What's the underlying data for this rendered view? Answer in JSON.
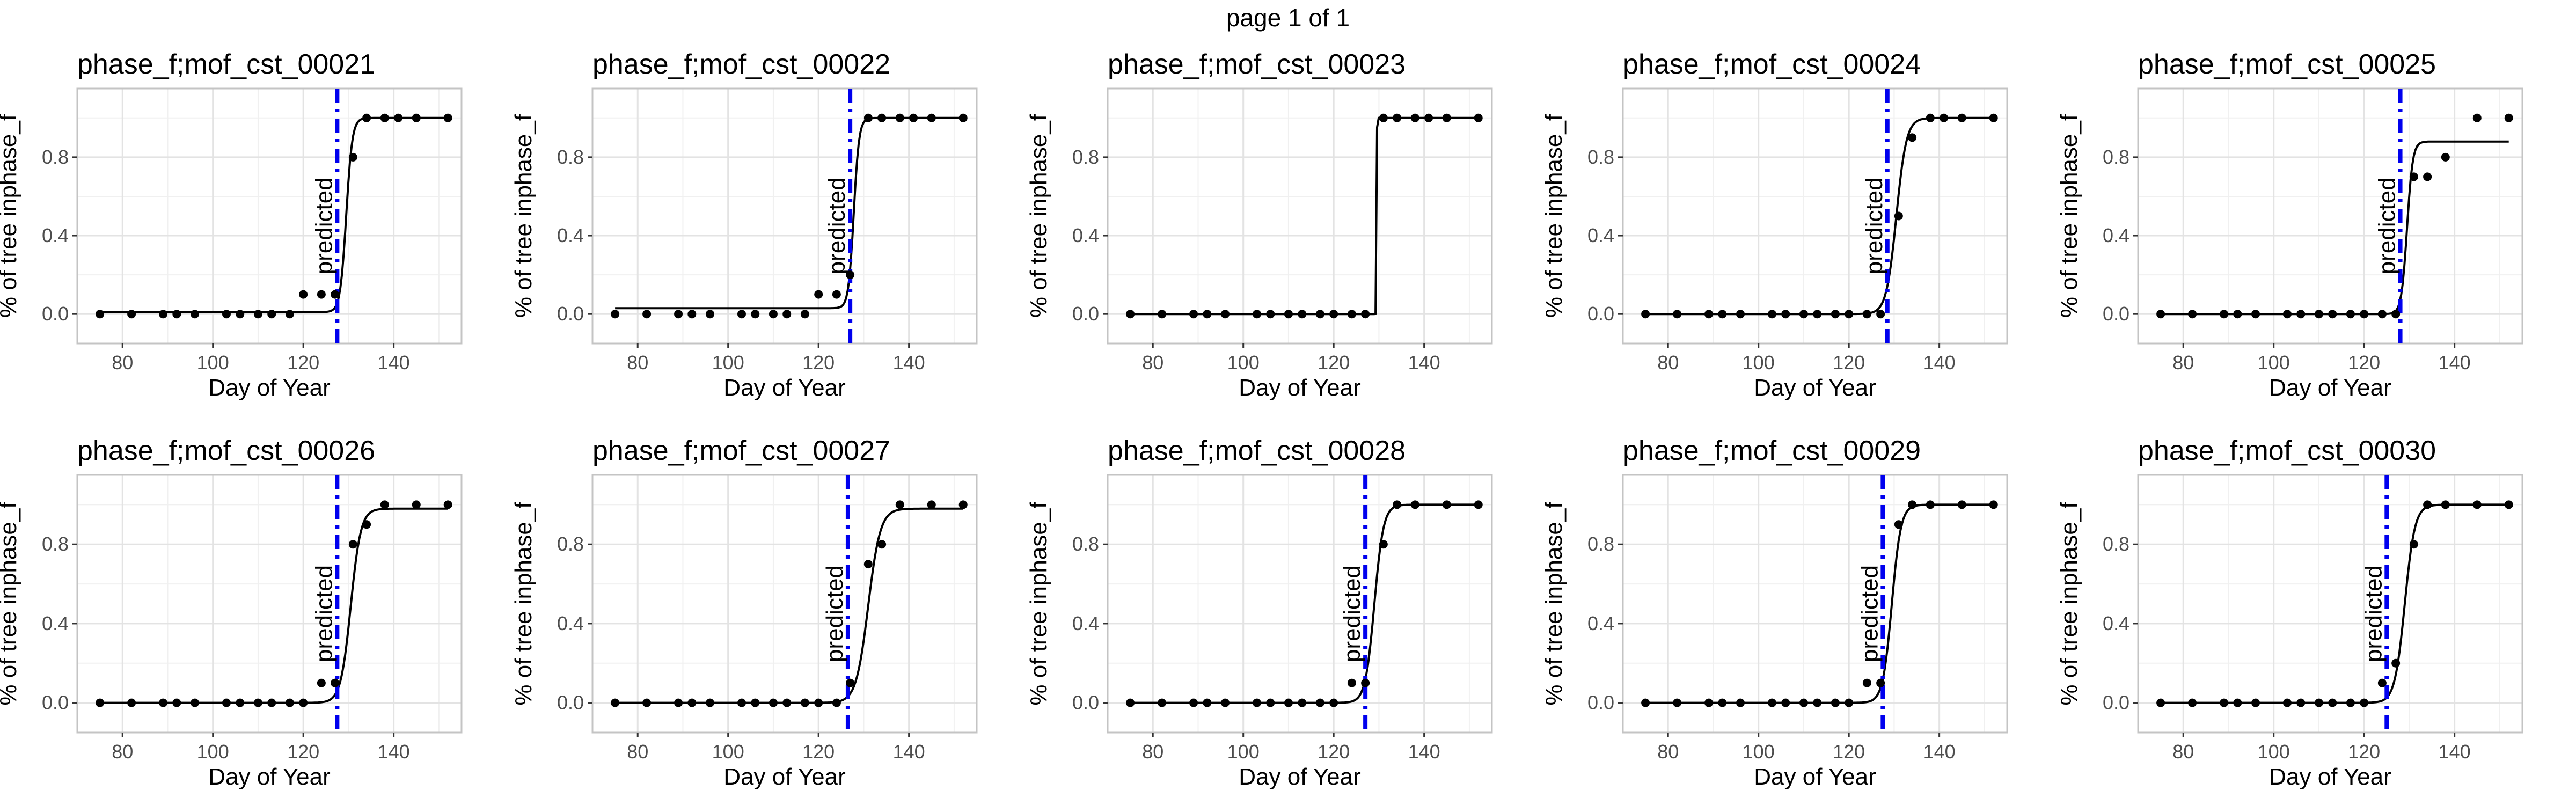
{
  "page_title": "page 1 of 1",
  "chart_data": [
    {
      "type": "scatter",
      "title": "phase_f;mof_cst_00021",
      "xlabel": "Day of Year",
      "ylabel": "% of tree inphase_f",
      "xlim": [
        70,
        155
      ],
      "ylim": [
        -0.15,
        1.15
      ],
      "xticks": [
        80,
        100,
        120,
        140
      ],
      "yticks": [
        0.0,
        0.4,
        0.8
      ],
      "points": {
        "x": [
          75,
          82,
          89,
          92,
          96,
          103,
          106,
          110,
          113,
          117,
          120,
          124,
          127,
          131,
          134,
          138,
          141,
          145,
          152
        ],
        "y": [
          0,
          0,
          0,
          0,
          0,
          0,
          0,
          0,
          0,
          0,
          0.1,
          0.1,
          0.1,
          0.8,
          1,
          1,
          1,
          1,
          1
        ]
      },
      "curve": {
        "L": 1.0,
        "x0": 129.5,
        "k": 1.5,
        "base": 0.01
      },
      "predicted_line": {
        "x": 127.5,
        "label": "predicted"
      },
      "grid": true
    },
    {
      "type": "scatter",
      "title": "phase_f;mof_cst_00022",
      "xlabel": "Day of Year",
      "ylabel": "% of tree inphase_f",
      "xlim": [
        70,
        155
      ],
      "ylim": [
        -0.15,
        1.15
      ],
      "xticks": [
        80,
        100,
        120,
        140
      ],
      "yticks": [
        0.0,
        0.4,
        0.8
      ],
      "points": {
        "x": [
          75,
          82,
          89,
          92,
          96,
          103,
          106,
          110,
          113,
          117,
          120,
          124,
          127,
          131,
          134,
          138,
          141,
          145,
          152
        ],
        "y": [
          0,
          0,
          0,
          0,
          0,
          0,
          0,
          0,
          0,
          0,
          0.1,
          0.1,
          0.2,
          1,
          1,
          1,
          1,
          1,
          1
        ]
      },
      "curve": {
        "L": 1.0,
        "x0": 127.8,
        "k": 1.7,
        "base": 0.03
      },
      "predicted_line": {
        "x": 127,
        "label": "predicted"
      },
      "grid": true
    },
    {
      "type": "scatter",
      "title": "phase_f;mof_cst_00023",
      "xlabel": "Day of Year",
      "ylabel": "% of tree inphase_f",
      "xlim": [
        70,
        155
      ],
      "ylim": [
        -0.15,
        1.15
      ],
      "xticks": [
        80,
        100,
        120,
        140
      ],
      "yticks": [
        0.0,
        0.4,
        0.8
      ],
      "points": {
        "x": [
          75,
          82,
          89,
          92,
          96,
          103,
          106,
          110,
          113,
          117,
          120,
          124,
          127,
          131,
          134,
          138,
          141,
          145,
          152
        ],
        "y": [
          0,
          0,
          0,
          0,
          0,
          0,
          0,
          0,
          0,
          0,
          0,
          0,
          0,
          1,
          1,
          1,
          1,
          1,
          1
        ]
      },
      "curve": {
        "L": 1.0,
        "x0": 129.5,
        "k": 30,
        "base": 0
      },
      "predicted_line": null,
      "grid": true
    },
    {
      "type": "scatter",
      "title": "phase_f;mof_cst_00024",
      "xlabel": "Day of Year",
      "ylabel": "% of tree inphase_f",
      "xlim": [
        70,
        155
      ],
      "ylim": [
        -0.15,
        1.15
      ],
      "xticks": [
        80,
        100,
        120,
        140
      ],
      "yticks": [
        0.0,
        0.4,
        0.8
      ],
      "points": {
        "x": [
          75,
          82,
          89,
          92,
          96,
          103,
          106,
          110,
          113,
          117,
          120,
          124,
          127,
          131,
          134,
          138,
          141,
          145,
          152
        ],
        "y": [
          0,
          0,
          0,
          0,
          0,
          0,
          0,
          0,
          0,
          0,
          0,
          0,
          0,
          0.5,
          0.9,
          1,
          1,
          1,
          1
        ]
      },
      "curve": {
        "L": 1.0,
        "x0": 130.5,
        "k": 0.9,
        "base": 0
      },
      "predicted_line": {
        "x": 128.5,
        "label": "predicted"
      },
      "grid": true
    },
    {
      "type": "scatter",
      "title": "phase_f;mof_cst_00025",
      "xlabel": "Day of Year",
      "ylabel": "% of tree inphase_f",
      "xlim": [
        70,
        155
      ],
      "ylim": [
        -0.15,
        1.15
      ],
      "xticks": [
        80,
        100,
        120,
        140
      ],
      "yticks": [
        0.0,
        0.4,
        0.8
      ],
      "points": {
        "x": [
          75,
          82,
          89,
          92,
          96,
          103,
          106,
          110,
          113,
          117,
          120,
          124,
          127,
          131,
          134,
          138,
          145,
          152
        ],
        "y": [
          0,
          0,
          0,
          0,
          0,
          0,
          0,
          0,
          0,
          0,
          0,
          0,
          0,
          0.7,
          0.7,
          0.8,
          1,
          1
        ]
      },
      "curve": {
        "L": 0.88,
        "x0": 129.5,
        "k": 1.6,
        "base": 0
      },
      "predicted_line": {
        "x": 128,
        "label": "predicted"
      },
      "grid": true
    },
    {
      "type": "scatter",
      "title": "phase_f;mof_cst_00026",
      "xlabel": "Day of Year",
      "ylabel": "% of tree inphase_f",
      "xlim": [
        70,
        155
      ],
      "ylim": [
        -0.15,
        1.15
      ],
      "xticks": [
        80,
        100,
        120,
        140
      ],
      "yticks": [
        0.0,
        0.4,
        0.8
      ],
      "points": {
        "x": [
          75,
          82,
          89,
          92,
          96,
          103,
          106,
          110,
          113,
          117,
          120,
          124,
          127,
          131,
          134,
          138,
          145,
          152
        ],
        "y": [
          0,
          0,
          0,
          0,
          0,
          0,
          0,
          0,
          0,
          0,
          0,
          0.1,
          0.1,
          0.8,
          0.9,
          1,
          1,
          1
        ]
      },
      "curve": {
        "L": 0.98,
        "x0": 130.5,
        "k": 0.9,
        "base": 0
      },
      "predicted_line": {
        "x": 127.5,
        "label": "predicted"
      },
      "grid": true
    },
    {
      "type": "scatter",
      "title": "phase_f;mof_cst_00027",
      "xlabel": "Day of Year",
      "ylabel": "% of tree inphase_f",
      "xlim": [
        70,
        155
      ],
      "ylim": [
        -0.15,
        1.15
      ],
      "xticks": [
        80,
        100,
        120,
        140
      ],
      "yticks": [
        0.0,
        0.4,
        0.8
      ],
      "points": {
        "x": [
          75,
          82,
          89,
          92,
          96,
          103,
          106,
          110,
          113,
          117,
          120,
          124,
          127,
          131,
          134,
          138,
          145,
          152
        ],
        "y": [
          0,
          0,
          0,
          0,
          0,
          0,
          0,
          0,
          0,
          0,
          0,
          0,
          0.1,
          0.7,
          0.8,
          1,
          1,
          1
        ]
      },
      "curve": {
        "L": 0.98,
        "x0": 131,
        "k": 0.75,
        "base": 0
      },
      "predicted_line": {
        "x": 126.5,
        "label": "predicted"
      },
      "grid": true
    },
    {
      "type": "scatter",
      "title": "phase_f;mof_cst_00028",
      "xlabel": "Day of Year",
      "ylabel": "% of tree inphase_f",
      "xlim": [
        70,
        155
      ],
      "ylim": [
        -0.15,
        1.15
      ],
      "xticks": [
        80,
        100,
        120,
        140
      ],
      "yticks": [
        0.0,
        0.4,
        0.8
      ],
      "points": {
        "x": [
          75,
          82,
          89,
          92,
          96,
          103,
          106,
          110,
          113,
          117,
          120,
          124,
          127,
          131,
          134,
          138,
          145,
          152
        ],
        "y": [
          0,
          0,
          0,
          0,
          0,
          0,
          0,
          0,
          0,
          0,
          0,
          0.1,
          0.1,
          0.8,
          1,
          1,
          1,
          1
        ]
      },
      "curve": {
        "L": 1.0,
        "x0": 129,
        "k": 1.0,
        "base": 0
      },
      "predicted_line": {
        "x": 127,
        "label": "predicted"
      },
      "grid": true
    },
    {
      "type": "scatter",
      "title": "phase_f;mof_cst_00029",
      "xlabel": "Day of Year",
      "ylabel": "% of tree inphase_f",
      "xlim": [
        70,
        155
      ],
      "ylim": [
        -0.15,
        1.15
      ],
      "xticks": [
        80,
        100,
        120,
        140
      ],
      "yticks": [
        0.0,
        0.4,
        0.8
      ],
      "points": {
        "x": [
          75,
          82,
          89,
          92,
          96,
          103,
          106,
          110,
          113,
          117,
          120,
          124,
          127,
          131,
          134,
          138,
          145,
          152
        ],
        "y": [
          0,
          0,
          0,
          0,
          0,
          0,
          0,
          0,
          0,
          0,
          0,
          0.1,
          0.1,
          0.9,
          1,
          1,
          1,
          1
        ]
      },
      "curve": {
        "L": 1.0,
        "x0": 129.5,
        "k": 1.0,
        "base": 0
      },
      "predicted_line": {
        "x": 127.5,
        "label": "predicted"
      },
      "grid": true
    },
    {
      "type": "scatter",
      "title": "phase_f;mof_cst_00030",
      "xlabel": "Day of Year",
      "ylabel": "% of tree inphase_f",
      "xlim": [
        70,
        155
      ],
      "ylim": [
        -0.15,
        1.15
      ],
      "xticks": [
        80,
        100,
        120,
        140
      ],
      "yticks": [
        0.0,
        0.4,
        0.8
      ],
      "points": {
        "x": [
          75,
          82,
          89,
          92,
          96,
          103,
          106,
          110,
          113,
          117,
          120,
          124,
          127,
          131,
          134,
          138,
          145,
          152
        ],
        "y": [
          0,
          0,
          0,
          0,
          0,
          0,
          0,
          0,
          0,
          0,
          0,
          0.1,
          0.2,
          0.8,
          1,
          1,
          1,
          1
        ]
      },
      "curve": {
        "L": 1.0,
        "x0": 129,
        "k": 0.9,
        "base": 0
      },
      "predicted_line": {
        "x": 125,
        "label": "predicted"
      },
      "grid": true
    }
  ]
}
